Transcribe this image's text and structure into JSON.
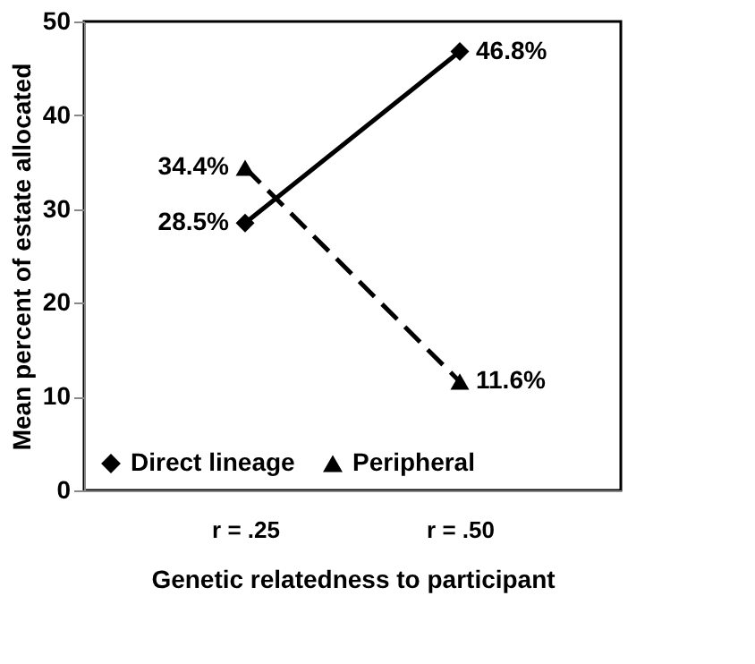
{
  "chart_data": {
    "type": "line",
    "xlabel": "Genetic relatedness to participant",
    "ylabel": "Mean percent of estate allocated",
    "categories": [
      "r = .25",
      "r = .50"
    ],
    "series": [
      {
        "name": "Direct lineage",
        "color": "#000000",
        "values": [
          28.5,
          46.8
        ],
        "value_labels": [
          "28.5%",
          "46.8%"
        ],
        "marker": "diamond",
        "line_style": "solid"
      },
      {
        "name": "Peripheral",
        "color": "#000000",
        "values": [
          34.4,
          11.6
        ],
        "value_labels": [
          "34.4%",
          "11.6%"
        ],
        "marker": "triangle",
        "line_style": "dashed"
      }
    ],
    "ylim": [
      0,
      50
    ],
    "yticks": [
      0,
      10,
      20,
      30,
      40,
      50
    ],
    "grid": false,
    "legend": "bottom"
  }
}
